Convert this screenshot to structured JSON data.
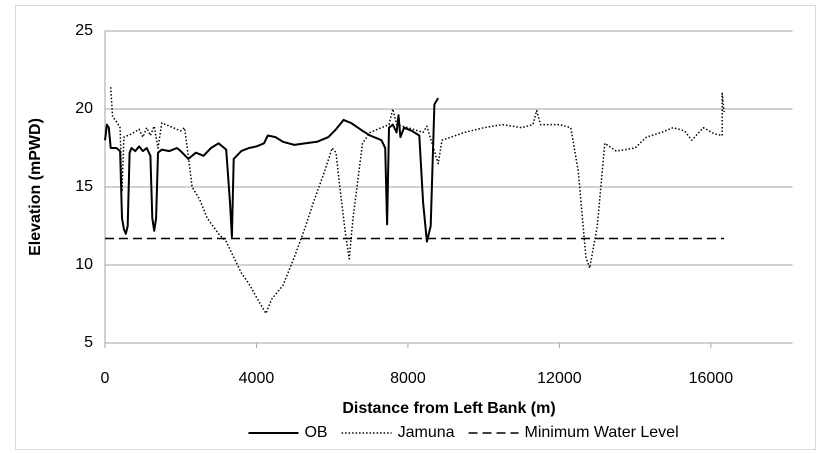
{
  "chart_data": {
    "type": "line",
    "xlabel": "Distance from Left Bank (m)",
    "ylabel": "Elevation (mPWD)",
    "xlim": [
      0,
      18000
    ],
    "xticks": [
      0,
      4000,
      8000,
      12000,
      16000
    ],
    "ylim": [
      5,
      25
    ],
    "yticks": [
      5,
      10,
      15,
      20,
      25
    ],
    "grid": true,
    "legend": "bottom",
    "series": [
      {
        "name": "OB",
        "color": "#000000",
        "style": "solid",
        "x": [
          0,
          50,
          100,
          150,
          300,
          400,
          450,
          500,
          550,
          600,
          650,
          700,
          800,
          900,
          1000,
          1100,
          1200,
          1250,
          1300,
          1350,
          1400,
          1500,
          1700,
          1900,
          2000,
          2200,
          2400,
          2600,
          2800,
          3000,
          3200,
          3300,
          3350,
          3400,
          3600,
          3800,
          4000,
          4200,
          4300,
          4500,
          4700,
          5000,
          5300,
          5600,
          5900,
          6100,
          6300,
          6500,
          6800,
          7000,
          7300,
          7400,
          7450,
          7500,
          7600,
          7700,
          7750,
          7800,
          7900,
          8100,
          8300,
          8400,
          8500,
          8600,
          8700,
          8800
        ],
        "values": [
          18.0,
          19.0,
          18.8,
          17.5,
          17.5,
          17.3,
          13.0,
          12.3,
          12.0,
          12.5,
          17.2,
          17.5,
          17.3,
          17.6,
          17.3,
          17.5,
          17.0,
          13.0,
          12.2,
          13.0,
          17.2,
          17.4,
          17.3,
          17.5,
          17.3,
          16.8,
          17.2,
          17.0,
          17.5,
          17.8,
          17.4,
          14.0,
          11.8,
          16.8,
          17.3,
          17.5,
          17.6,
          17.8,
          18.3,
          18.2,
          17.9,
          17.7,
          17.8,
          17.9,
          18.2,
          18.7,
          19.3,
          19.1,
          18.6,
          18.3,
          18.0,
          17.5,
          12.6,
          18.8,
          19.0,
          18.5,
          19.6,
          18.2,
          18.8,
          18.6,
          18.3,
          14.0,
          11.5,
          12.5,
          20.3,
          20.7
        ]
      },
      {
        "name": "Jamuna",
        "color": "#000000",
        "style": "dotted",
        "x": [
          150,
          200,
          300,
          400,
          450,
          500,
          700,
          900,
          1000,
          1100,
          1200,
          1300,
          1400,
          1500,
          1700,
          2000,
          2100,
          2200,
          2300,
          2500,
          2700,
          3000,
          3200,
          3400,
          3600,
          3800,
          4100,
          4250,
          4400,
          4700,
          5000,
          5300,
          5500,
          5800,
          6000,
          6100,
          6200,
          6350,
          6450,
          6550,
          6800,
          7000,
          7300,
          7500,
          7600,
          7700,
          8000,
          8400,
          8500,
          8800,
          8900,
          9500,
          10000,
          10500,
          11000,
          11300,
          11400,
          11500,
          12000,
          12300,
          12500,
          12700,
          12800,
          13000,
          13200,
          13500,
          14000,
          14300,
          14700,
          15000,
          15300,
          15500,
          15800,
          16100,
          16300,
          16300,
          16350
        ],
        "values": [
          21.4,
          19.5,
          19.2,
          18.8,
          14.7,
          18.2,
          18.4,
          18.7,
          18.2,
          18.8,
          18.3,
          18.9,
          17.5,
          19.1,
          18.9,
          18.6,
          18.8,
          17.0,
          15.0,
          14.2,
          13.0,
          12.0,
          11.5,
          10.5,
          9.5,
          8.8,
          7.5,
          6.9,
          7.8,
          8.7,
          10.5,
          12.5,
          14.0,
          16.0,
          17.5,
          17.2,
          15.0,
          12.0,
          10.4,
          13.0,
          17.8,
          18.5,
          18.8,
          19.0,
          20.0,
          19.0,
          18.8,
          18.5,
          18.9,
          16.5,
          18.0,
          18.5,
          18.8,
          19.0,
          18.8,
          19.0,
          19.9,
          19.0,
          19.0,
          18.8,
          16.0,
          10.5,
          9.8,
          12.5,
          17.8,
          17.3,
          17.5,
          18.2,
          18.5,
          18.8,
          18.6,
          18.0,
          18.8,
          18.4,
          18.3,
          21.0,
          19.8
        ]
      },
      {
        "name": "Minimum Water Level",
        "color": "#000000",
        "style": "dashed",
        "x": [
          0,
          16350
        ],
        "values": [
          11.7,
          11.7
        ]
      }
    ]
  }
}
